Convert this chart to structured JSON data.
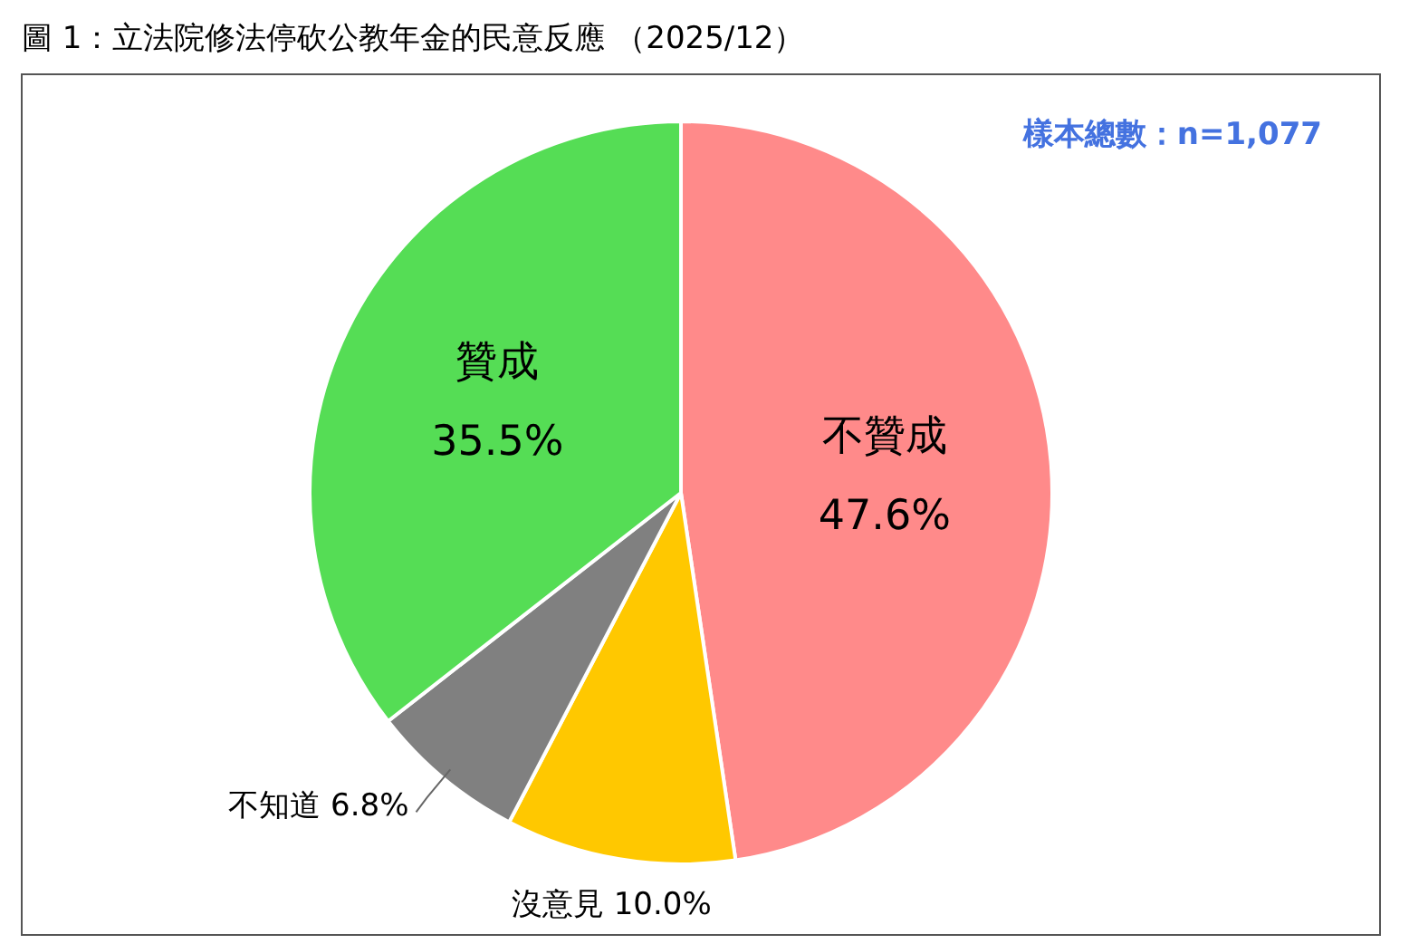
{
  "chart_data": {
    "type": "pie",
    "title": "圖 1：立法院修法停砍公教年金的民意反應 （2025/12）",
    "categories": [
      "不贊成",
      "沒意見",
      "不知道",
      "贊成"
    ],
    "values": [
      47.6,
      10.0,
      6.8,
      35.5
    ],
    "colors": [
      "#ff8a8a",
      "#ffc800",
      "#808080",
      "#55dd55"
    ],
    "annotations": [
      "樣本總數：n=1,077"
    ],
    "value_labels": [
      "47.6%",
      "10.0%",
      "6.8%",
      "35.5%"
    ]
  }
}
